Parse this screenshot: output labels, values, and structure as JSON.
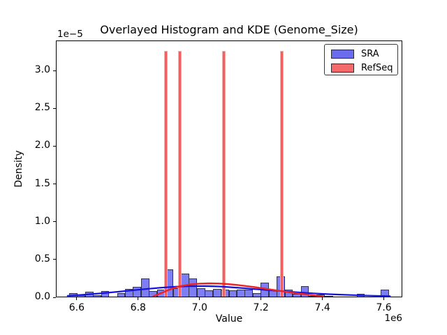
{
  "chart_data": {
    "type": "bar",
    "subtype": "overlaid_histogram_with_kde",
    "title": "Overlayed Histogram and KDE (Genome_Size)",
    "xlabel": "Value",
    "ylabel": "Density",
    "x_offset_text": "1e6",
    "y_offset_text": "1e−5",
    "x_units": "values are ×1e6",
    "y_units": "densities are ×1e-5",
    "xlim": [
      6.532,
      7.66
    ],
    "ylim": [
      0,
      3.397
    ],
    "xticks": [
      "6.6",
      "6.8",
      "7.0",
      "7.2",
      "7.4",
      "7.6"
    ],
    "yticks": [
      "0.0",
      "0.5",
      "1.0",
      "1.5",
      "2.0",
      "2.5",
      "3.0"
    ],
    "grid": false,
    "legend": {
      "position": "upper right",
      "entries": [
        {
          "label": "SRA",
          "color": "#6b6bee"
        },
        {
          "label": "RefSeq",
          "color": "#f46a6a"
        }
      ]
    },
    "sra_histogram": {
      "name": "SRA",
      "bin_width": 0.026,
      "fill": "#7d7df4",
      "edge": "#33334d",
      "bars": [
        [
          6.575,
          0.06
        ],
        [
          6.601,
          0.03
        ],
        [
          6.627,
          0.07
        ],
        [
          6.653,
          0.03
        ],
        [
          6.679,
          0.08
        ],
        [
          6.705,
          0.01
        ],
        [
          6.731,
          0.06
        ],
        [
          6.757,
          0.11
        ],
        [
          6.783,
          0.14
        ],
        [
          6.809,
          0.25
        ],
        [
          6.835,
          0.08
        ],
        [
          6.861,
          0.1
        ],
        [
          6.887,
          0.37
        ],
        [
          6.913,
          0.12
        ],
        [
          6.939,
          0.31
        ],
        [
          6.965,
          0.25
        ],
        [
          6.991,
          0.12
        ],
        [
          7.017,
          0.09
        ],
        [
          7.043,
          0.11
        ],
        [
          7.069,
          0.1
        ],
        [
          7.095,
          0.09
        ],
        [
          7.121,
          0.1
        ],
        [
          7.147,
          0.1
        ],
        [
          7.173,
          0.06
        ],
        [
          7.199,
          0.19
        ],
        [
          7.225,
          0.1
        ],
        [
          7.251,
          0.28
        ],
        [
          7.277,
          0.1
        ],
        [
          7.303,
          0.05
        ],
        [
          7.329,
          0.15
        ],
        [
          7.355,
          0.02
        ],
        [
          7.381,
          0.04
        ],
        [
          7.407,
          0.02
        ],
        [
          7.511,
          0.05
        ],
        [
          7.589,
          0.1
        ]
      ]
    },
    "refseq_histogram": {
      "name": "RefSeq",
      "bar_width": 0.011,
      "fill": "#ef6060",
      "edge": "#f7aaaa",
      "bars": [
        [
          6.885,
          3.26
        ],
        [
          6.93,
          3.26
        ],
        [
          7.074,
          3.26
        ],
        [
          7.262,
          3.26
        ]
      ]
    },
    "sra_kde": {
      "name": "SRA KDE",
      "color": "#1212e0",
      "line_width": 2.2,
      "points": [
        [
          6.57,
          0.02
        ],
        [
          6.62,
          0.034
        ],
        [
          6.67,
          0.05
        ],
        [
          6.72,
          0.068
        ],
        [
          6.77,
          0.088
        ],
        [
          6.82,
          0.108
        ],
        [
          6.87,
          0.126
        ],
        [
          6.92,
          0.14
        ],
        [
          6.97,
          0.148
        ],
        [
          7.02,
          0.149
        ],
        [
          7.07,
          0.142
        ],
        [
          7.12,
          0.128
        ],
        [
          7.17,
          0.112
        ],
        [
          7.22,
          0.096
        ],
        [
          7.27,
          0.081
        ],
        [
          7.32,
          0.066
        ],
        [
          7.37,
          0.053
        ],
        [
          7.42,
          0.042
        ],
        [
          7.47,
          0.033
        ],
        [
          7.52,
          0.026
        ],
        [
          7.57,
          0.02
        ],
        [
          7.62,
          0.015
        ]
      ]
    },
    "refseq_kde": {
      "name": "RefSeq KDE",
      "color": "#ee2222",
      "line_width": 2.4,
      "points": [
        [
          6.85,
          0.015
        ],
        [
          6.88,
          0.065
        ],
        [
          6.91,
          0.115
        ],
        [
          6.94,
          0.15
        ],
        [
          6.97,
          0.17
        ],
        [
          7.0,
          0.181
        ],
        [
          7.03,
          0.185
        ],
        [
          7.06,
          0.183
        ],
        [
          7.09,
          0.175
        ],
        [
          7.12,
          0.164
        ],
        [
          7.15,
          0.15
        ],
        [
          7.18,
          0.134
        ],
        [
          7.21,
          0.116
        ],
        [
          7.24,
          0.098
        ],
        [
          7.27,
          0.08
        ],
        [
          7.3,
          0.062
        ],
        [
          7.33,
          0.046
        ],
        [
          7.36,
          0.031
        ],
        [
          7.4,
          0.012
        ]
      ]
    }
  }
}
